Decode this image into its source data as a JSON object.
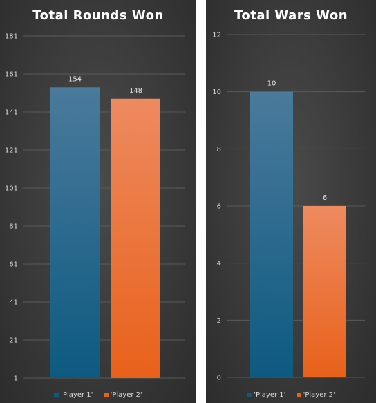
{
  "colors": {
    "player1_top": "#4a7a9c",
    "player1_bottom": "#0d5a80",
    "player2_top": "#ee8a60",
    "player2_bottom": "#e8611a",
    "grid": "#5a5a5a"
  },
  "chart_data": [
    {
      "type": "bar",
      "title": "Total Rounds Won",
      "categories": [
        "'Player 1'",
        "'Player 2'"
      ],
      "values": [
        154,
        148
      ],
      "data_labels": [
        "154",
        "148"
      ],
      "ylim": [
        1,
        181
      ],
      "yticks": [
        1,
        21,
        41,
        61,
        81,
        101,
        121,
        141,
        161,
        181
      ],
      "ytick_labels": [
        "1",
        "21",
        "41",
        "61",
        "81",
        "101",
        "121",
        "141",
        "161",
        "181"
      ],
      "legend": [
        "'Player 1'",
        "'Player 2'"
      ],
      "legend_position": "bottom",
      "grid": true
    },
    {
      "type": "bar",
      "title": "Total Wars Won",
      "categories": [
        "'Player 1'",
        "'Player 2'"
      ],
      "values": [
        10,
        6
      ],
      "data_labels": [
        "10",
        "6"
      ],
      "ylim": [
        0,
        12
      ],
      "yticks": [
        0,
        2,
        4,
        6,
        8,
        10,
        12
      ],
      "ytick_labels": [
        "0",
        "2",
        "4",
        "6",
        "8",
        "10",
        "12"
      ],
      "legend": [
        "'Player 1'",
        "'Player 2'"
      ],
      "legend_position": "bottom",
      "grid": true
    }
  ]
}
